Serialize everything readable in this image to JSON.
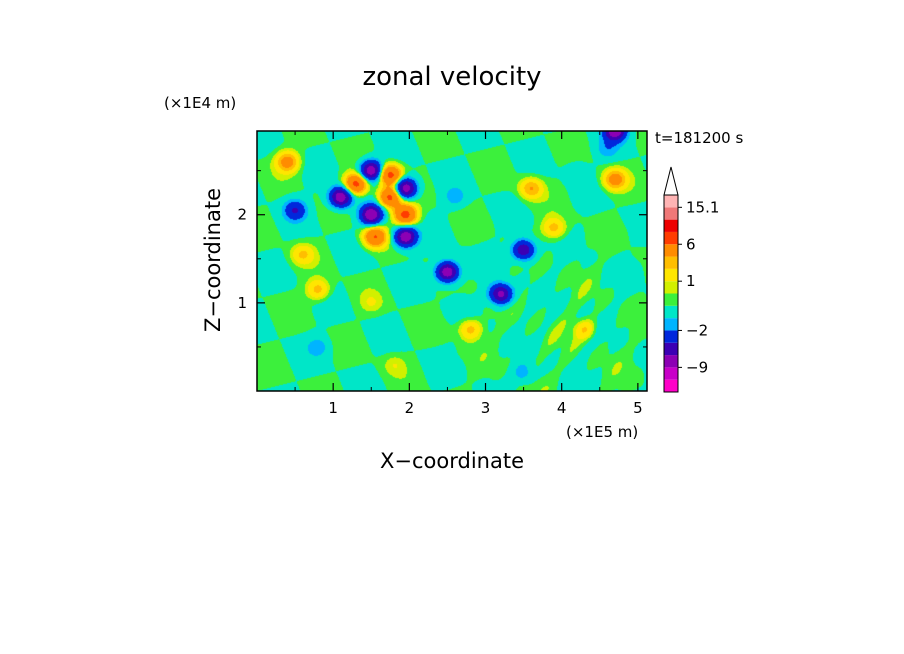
{
  "chart_data": {
    "type": "heatmap",
    "title": "zonal velocity",
    "xlabel": "X−coordinate",
    "ylabel": "Z−coordinate",
    "x_scale_label": "(×1E5 m)",
    "y_scale_label": "(×1E4 m)",
    "time_label": "t=181200 s",
    "xlim": [
      0,
      5.12
    ],
    "ylim": [
      0,
      2.95
    ],
    "x_ticks": [
      {
        "value": 1,
        "label": "1"
      },
      {
        "value": 2,
        "label": "2"
      },
      {
        "value": 3,
        "label": "3"
      },
      {
        "value": 4,
        "label": "4"
      },
      {
        "value": 5,
        "label": "5"
      }
    ],
    "y_ticks": [
      {
        "value": 1,
        "label": "1"
      },
      {
        "value": 2,
        "label": "2"
      }
    ],
    "colorbar": {
      "levels": [
        {
          "min": -15.1,
          "max": -12,
          "color": "#ff00c8"
        },
        {
          "min": -12,
          "max": -9,
          "color": "#c800c8"
        },
        {
          "min": -9,
          "max": -6,
          "color": "#8c00b4"
        },
        {
          "min": -6,
          "max": -4,
          "color": "#3c00b4"
        },
        {
          "min": -4,
          "max": -2,
          "color": "#0028dc"
        },
        {
          "min": -2,
          "max": -1,
          "color": "#00b4ff"
        },
        {
          "min": -1,
          "max": 0,
          "color": "#00e6c8"
        },
        {
          "min": 0,
          "max": 0.5,
          "color": "#3cf03c"
        },
        {
          "min": 0.5,
          "max": 1,
          "color": "#d2f000"
        },
        {
          "min": 1,
          "max": 2,
          "color": "#ffe600"
        },
        {
          "min": 2,
          "max": 3,
          "color": "#ffbe00"
        },
        {
          "min": 3,
          "max": 6,
          "color": "#ff8c00"
        },
        {
          "min": 6,
          "max": 9,
          "color": "#ff3c00"
        },
        {
          "min": 9,
          "max": 12,
          "color": "#ee0000"
        },
        {
          "min": 12,
          "max": 15.1,
          "color": "#f07878"
        },
        {
          "min": 15.1,
          "max": 18,
          "color": "#ffb4b4"
        }
      ],
      "labels": [
        {
          "value": 15.1,
          "label": "15.1"
        },
        {
          "value": 6,
          "label": "6"
        },
        {
          "value": 1,
          "label": "1"
        },
        {
          "value": -2,
          "label": "−2"
        },
        {
          "value": -9,
          "label": "−9"
        }
      ]
    },
    "field_features": [
      {
        "x": 1.1,
        "z": 2.2,
        "value": -8
      },
      {
        "x": 1.5,
        "z": 2.5,
        "value": -8
      },
      {
        "x": 1.95,
        "z": 2.3,
        "value": -8
      },
      {
        "x": 1.5,
        "z": 2.0,
        "value": -8
      },
      {
        "x": 1.95,
        "z": 1.75,
        "value": -8
      },
      {
        "x": 1.3,
        "z": 2.35,
        "value": 7
      },
      {
        "x": 1.75,
        "z": 2.45,
        "value": 7
      },
      {
        "x": 1.75,
        "z": 2.2,
        "value": 7
      },
      {
        "x": 1.95,
        "z": 2.0,
        "value": 7
      },
      {
        "x": 1.55,
        "z": 1.75,
        "value": 6
      },
      {
        "x": 2.5,
        "z": 1.35,
        "value": -8
      },
      {
        "x": 3.2,
        "z": 1.1,
        "value": -7
      },
      {
        "x": 3.5,
        "z": 1.6,
        "value": -6
      },
      {
        "x": 2.6,
        "z": 2.2,
        "value": -1.5
      },
      {
        "x": 4.2,
        "z": 2.5,
        "value": -0.8
      },
      {
        "x": 4.7,
        "z": 2.95,
        "value": -8
      },
      {
        "x": 4.6,
        "z": 2.75,
        "value": -1.5
      },
      {
        "x": 4.7,
        "z": 2.4,
        "value": 4
      },
      {
        "x": 3.6,
        "z": 2.3,
        "value": 3
      },
      {
        "x": 3.9,
        "z": 1.85,
        "value": 2.5
      },
      {
        "x": 0.4,
        "z": 2.6,
        "value": 4
      },
      {
        "x": 0.5,
        "z": 2.05,
        "value": -4
      },
      {
        "x": 0.6,
        "z": 1.55,
        "value": 2
      },
      {
        "x": 0.8,
        "z": 1.15,
        "value": 2.5
      },
      {
        "x": 2.8,
        "z": 0.7,
        "value": 2.5
      },
      {
        "x": 4.3,
        "z": 0.7,
        "value": 2
      },
      {
        "x": 0.8,
        "z": 0.5,
        "value": -1.5
      },
      {
        "x": 3.5,
        "z": 0.2,
        "value": -1.5
      },
      {
        "x": 4.8,
        "z": 1.35,
        "value": 0.2
      },
      {
        "x": 1.8,
        "z": 0.3,
        "value": 0.8
      },
      {
        "x": 1.5,
        "z": 1.0,
        "value": 0.8
      }
    ]
  }
}
